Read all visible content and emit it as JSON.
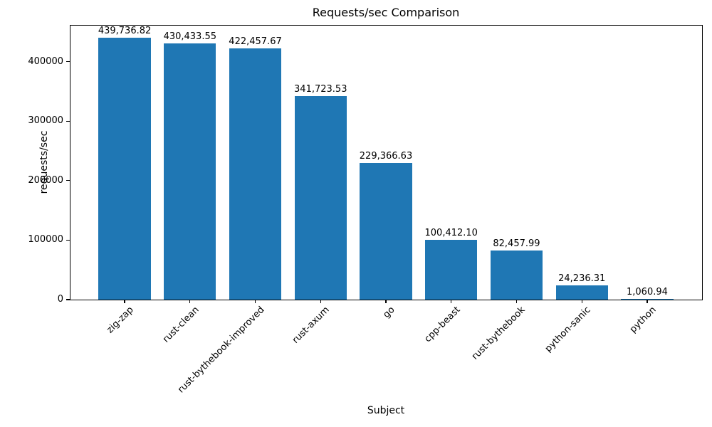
{
  "chart_data": {
    "type": "bar",
    "title": "Requests/sec Comparison",
    "xlabel": "Subject",
    "ylabel": "requests/sec",
    "categories": [
      "zig-zap",
      "rust-clean",
      "rust-bythebook-improved",
      "rust-axum",
      "go",
      "cpp-beast",
      "rust-bythebook",
      "python-sanic",
      "python"
    ],
    "values": [
      439736.82,
      430433.55,
      422457.67,
      341723.53,
      229366.63,
      100412.1,
      82457.99,
      24236.31,
      1060.94
    ],
    "value_labels": [
      "439,736.82",
      "430,433.55",
      "422,457.67",
      "341,723.53",
      "229,366.63",
      "100,412.10",
      "82,457.99",
      "24,236.31",
      "1,060.94"
    ],
    "yticks": [
      0,
      100000,
      200000,
      300000,
      400000
    ],
    "ylim": [
      0,
      461723.66
    ],
    "x_tick_rotation_deg": 45,
    "bar_color": "#1f77b4",
    "text_color": "#000000",
    "grid": false,
    "legend": "none"
  }
}
